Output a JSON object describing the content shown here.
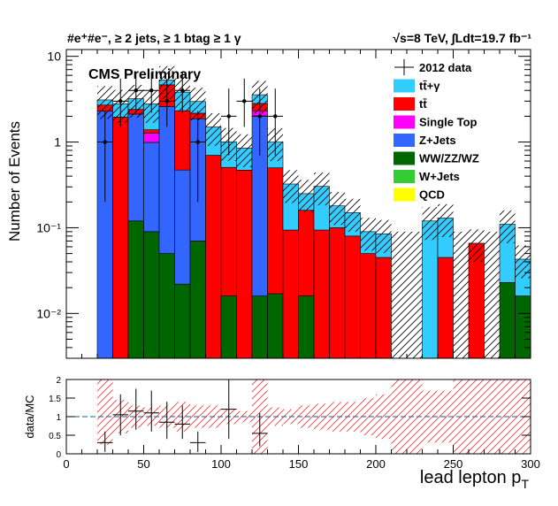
{
  "header": {
    "left": "#e⁺#e⁻, ≥ 2 jets, ≥ 1 btag ≥ 1 γ",
    "right": "√s=8 TeV, ∫Ldt=19.7 fb⁻¹"
  },
  "chart_data": [
    {
      "type": "bar",
      "stacked": true,
      "log_y": true,
      "title": "CMS Preliminary",
      "ylabel": "Number of Events",
      "xlim": [
        0,
        300
      ],
      "ylim": [
        0.003,
        12
      ],
      "bin_width": 10,
      "y_tick_labels": [
        "10⁻²",
        "10⁻¹",
        "1",
        "10"
      ],
      "legend_position": "top-right",
      "legend": [
        "2012 data",
        "tt̄+γ",
        "tt̄",
        "Single Top",
        "Z+Jets",
        "WW/ZZ/WZ",
        "W+Jets",
        "QCD"
      ],
      "colors": {
        "ttgamma": "#33ccff",
        "ttbar": "#ff0000",
        "singletop": "#ff00ff",
        "zjets": "#3366ff",
        "diboson": "#006600",
        "wjets": "#33cc33",
        "qcd": "#ffff00"
      },
      "bins_lo": [
        20,
        30,
        40,
        50,
        60,
        70,
        80,
        90,
        100,
        110,
        120,
        130,
        140,
        150,
        160,
        170,
        180,
        190,
        200,
        210,
        220,
        230,
        240,
        250,
        260,
        270,
        280,
        290
      ],
      "series": [
        {
          "name": "WW/ZZ/WZ",
          "key": "diboson",
          "values": [
            0,
            0,
            0.12,
            0.09,
            0.05,
            0.022,
            0.07,
            0,
            0.016,
            0,
            0.016,
            0.017,
            0,
            0.016,
            0,
            0,
            0,
            0,
            0,
            0,
            0,
            0,
            0,
            0,
            0,
            0,
            0.023,
            0.016
          ]
        },
        {
          "name": "Z+Jets",
          "key": "zjets",
          "values": [
            2.3,
            0,
            2.0,
            0.9,
            2.55,
            0.45,
            1.8,
            0,
            0,
            0,
            2.0,
            0,
            0,
            0,
            0,
            0,
            0,
            0,
            0,
            0,
            0,
            0,
            0,
            0,
            0,
            0,
            0,
            0
          ]
        },
        {
          "name": "Single Top",
          "key": "singletop",
          "values": [
            0,
            0,
            0,
            0.28,
            0,
            0,
            0,
            0,
            0,
            0,
            0.3,
            0,
            0,
            0,
            0,
            0,
            0,
            0,
            0,
            0,
            0,
            0,
            0,
            0,
            0,
            0,
            0,
            0
          ]
        },
        {
          "name": "tt̄",
          "key": "ttbar",
          "values": [
            0.4,
            1.95,
            0.28,
            0.12,
            2.05,
            1.85,
            0.3,
            0.7,
            0.49,
            0.47,
            0.5,
            0.483,
            0.094,
            0.144,
            0.094,
            0.1,
            0.08,
            0.05,
            0.045,
            0,
            0,
            0,
            0.045,
            0,
            0.066,
            0,
            0,
            0
          ]
        },
        {
          "name": "tt̄+γ",
          "key": "ttgamma",
          "values": [
            0.4,
            0.85,
            0.8,
            1.4,
            0.65,
            1.5,
            0.8,
            0.8,
            0.5,
            0.38,
            0.75,
            0.5,
            0.23,
            0.09,
            0.21,
            0.08,
            0.07,
            0.04,
            0.04,
            0,
            0,
            0.12,
            0.085,
            0,
            0,
            0,
            0.087,
            0.027
          ]
        },
        {
          "name": "W+Jets",
          "key": "wjets",
          "values": [
            0,
            0,
            0,
            0,
            0,
            0,
            0,
            0,
            0,
            0,
            0,
            0,
            0,
            0,
            0,
            0,
            0,
            0,
            0,
            0,
            0,
            0,
            0,
            0,
            0,
            0,
            0,
            0
          ]
        },
        {
          "name": "QCD",
          "key": "qcd",
          "values": [
            0,
            0,
            0,
            0,
            0,
            0,
            0,
            0,
            0,
            0,
            0,
            0,
            0,
            0,
            0,
            0,
            0,
            0,
            0,
            0,
            0,
            0,
            0,
            0,
            0,
            0,
            0,
            0
          ]
        }
      ],
      "data_points": [
        {
          "x": 25,
          "y": 1,
          "ylo": 0.2,
          "yhi": 2.3
        },
        {
          "x": 35,
          "y": 3,
          "ylo": 1.5,
          "yhi": 5.5
        },
        {
          "x": 45,
          "y": 4,
          "ylo": 2.2,
          "yhi": 6.5
        },
        {
          "x": 55,
          "y": 4,
          "ylo": 2.2,
          "yhi": 6.5
        },
        {
          "x": 65,
          "y": 3,
          "ylo": 1.5,
          "yhi": 5.5
        },
        {
          "x": 75,
          "y": 4,
          "ylo": 2.2,
          "yhi": 6.5
        },
        {
          "x": 85,
          "y": 1,
          "ylo": 0.2,
          "yhi": 2.3
        },
        {
          "x": 105,
          "y": 2,
          "ylo": 0.7,
          "yhi": 4.2
        },
        {
          "x": 115,
          "y": 3,
          "ylo": 1.5,
          "yhi": 5.5
        },
        {
          "x": 125,
          "y": 2,
          "ylo": 0.7,
          "yhi": 4.2
        },
        {
          "x": 135,
          "y": 2,
          "ylo": 0.7,
          "yhi": 4.2
        }
      ]
    },
    {
      "type": "scatter",
      "ylabel": "data/MC",
      "xlabel": "lead lepton p_T",
      "xlim": [
        0,
        300
      ],
      "ylim": [
        0,
        2
      ],
      "x_ticks": [
        0,
        50,
        100,
        150,
        200,
        250,
        300
      ],
      "y_ticks": [
        "0",
        "0.5",
        "1",
        "1.5",
        "2"
      ],
      "reference_line": 1,
      "uncertainty_band": [
        {
          "x": [
            20,
            30
          ],
          "lo": 0.25,
          "hi": 2
        },
        {
          "x": [
            30,
            40
          ],
          "lo": 0.55,
          "hi": 1.45
        },
        {
          "x": [
            40,
            50
          ],
          "lo": 0.7,
          "hi": 1.3
        },
        {
          "x": [
            50,
            60
          ],
          "lo": 0.75,
          "hi": 1.25
        },
        {
          "x": [
            60,
            70
          ],
          "lo": 0.7,
          "hi": 1.3
        },
        {
          "x": [
            70,
            80
          ],
          "lo": 0.6,
          "hi": 1.4
        },
        {
          "x": [
            80,
            90
          ],
          "lo": 0.7,
          "hi": 1.3
        },
        {
          "x": [
            90,
            100
          ],
          "lo": 0.7,
          "hi": 1.3
        },
        {
          "x": [
            100,
            110
          ],
          "lo": 0.8,
          "hi": 1.2
        },
        {
          "x": [
            110,
            120
          ],
          "lo": 0.85,
          "hi": 1.15
        },
        {
          "x": [
            120,
            130
          ],
          "lo": 0,
          "hi": 2
        },
        {
          "x": [
            130,
            140
          ],
          "lo": 0.75,
          "hi": 1.25
        },
        {
          "x": [
            140,
            150
          ],
          "lo": 0.8,
          "hi": 1.2
        },
        {
          "x": [
            150,
            160
          ],
          "lo": 0.7,
          "hi": 1.3
        },
        {
          "x": [
            160,
            170
          ],
          "lo": 0.65,
          "hi": 1.35
        },
        {
          "x": [
            170,
            180
          ],
          "lo": 0.6,
          "hi": 1.4
        },
        {
          "x": [
            180,
            190
          ],
          "lo": 0.6,
          "hi": 1.4
        },
        {
          "x": [
            190,
            200
          ],
          "lo": 0.5,
          "hi": 1.5
        },
        {
          "x": [
            200,
            210
          ],
          "lo": 0.4,
          "hi": 1.6
        },
        {
          "x": [
            210,
            220
          ],
          "lo": 0,
          "hi": 2
        },
        {
          "x": [
            220,
            230
          ],
          "lo": 0,
          "hi": 2
        },
        {
          "x": [
            230,
            240
          ],
          "lo": 0.3,
          "hi": 1.7
        },
        {
          "x": [
            240,
            250
          ],
          "lo": 0.3,
          "hi": 1.7
        },
        {
          "x": [
            250,
            260
          ],
          "lo": 0,
          "hi": 2
        },
        {
          "x": [
            260,
            270
          ],
          "lo": 0,
          "hi": 2
        },
        {
          "x": [
            270,
            280
          ],
          "lo": 0,
          "hi": 2
        },
        {
          "x": [
            280,
            290
          ],
          "lo": 0,
          "hi": 2
        },
        {
          "x": [
            290,
            300
          ],
          "lo": 0,
          "hi": 2
        }
      ],
      "points": [
        {
          "x": 25,
          "y": 0.3,
          "ylo": 0.05,
          "yhi": 0.6
        },
        {
          "x": 35,
          "y": 1.05,
          "ylo": 0.5,
          "yhi": 1.6
        },
        {
          "x": 45,
          "y": 1.15,
          "ylo": 0.65,
          "yhi": 1.75
        },
        {
          "x": 55,
          "y": 1.1,
          "ylo": 0.6,
          "yhi": 1.7
        },
        {
          "x": 65,
          "y": 0.85,
          "ylo": 0.4,
          "yhi": 1.4
        },
        {
          "x": 75,
          "y": 0.8,
          "ylo": 0.4,
          "yhi": 1.3
        },
        {
          "x": 85,
          "y": 0.3,
          "ylo": 0.05,
          "yhi": 0.6
        },
        {
          "x": 105,
          "y": 1.2,
          "ylo": 0.4,
          "yhi": 2.0
        },
        {
          "x": 125,
          "y": 0.55,
          "ylo": 0.2,
          "yhi": 1.1
        }
      ]
    }
  ]
}
